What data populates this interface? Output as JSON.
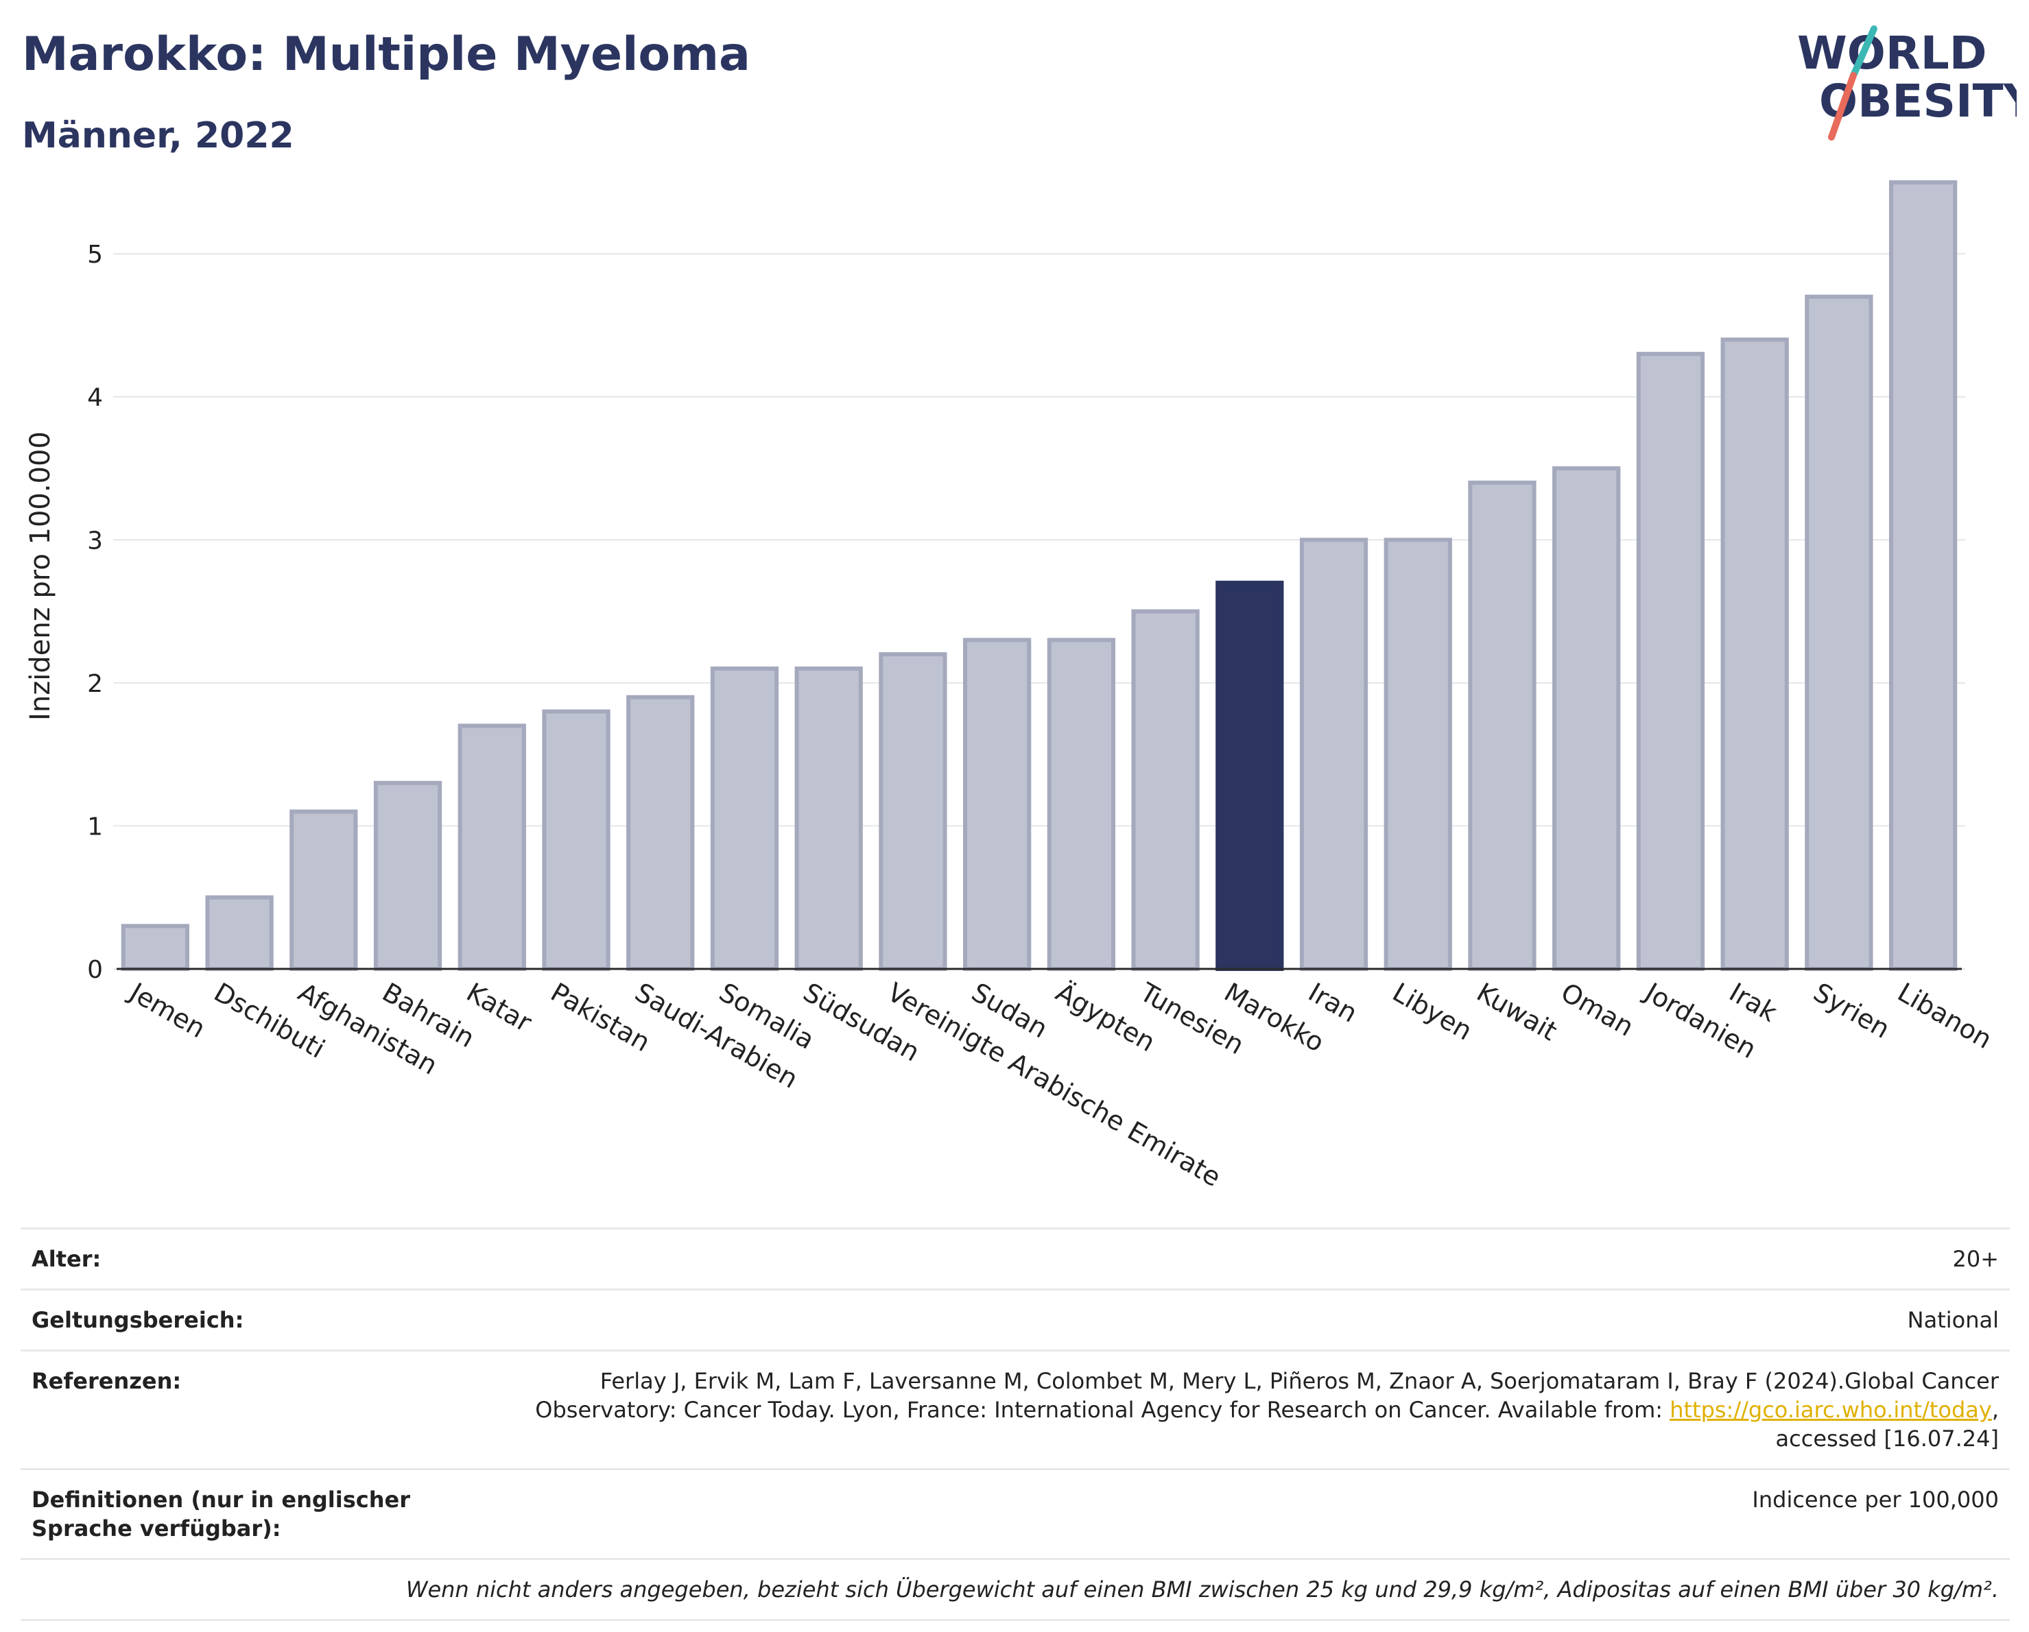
{
  "header": {
    "title": "Marokko: Multiple Myeloma",
    "subtitle": "Männer, 2022",
    "logo_line1": "WORLD",
    "logo_line2": "OBESITY"
  },
  "colors": {
    "bar_default": "#bfc2d0",
    "bar_default_stroke": "#a5a9bd",
    "bar_highlight": "#2b3560",
    "title": "#2b3560",
    "link": "#e0b000"
  },
  "chart_data": {
    "type": "bar",
    "categories": [
      "Jemen",
      "Dschibuti",
      "Afghanistan",
      "Bahrain",
      "Katar",
      "Pakistan",
      "Saudi-Arabien",
      "Somalia",
      "Südsudan",
      "Vereinigte Arabische Emirate",
      "Sudan",
      "Ägypten",
      "Tunesien",
      "Marokko",
      "Iran",
      "Libyen",
      "Kuwait",
      "Oman",
      "Jordanien",
      "Irak",
      "Syrien",
      "Libanon"
    ],
    "values": [
      0.3,
      0.5,
      1.1,
      1.3,
      1.7,
      1.8,
      1.9,
      2.1,
      2.1,
      2.2,
      2.3,
      2.3,
      2.5,
      2.7,
      3.0,
      3.0,
      3.4,
      3.5,
      4.3,
      4.4,
      4.7,
      5.5
    ],
    "highlight": "Marokko",
    "ylabel": "Inzidenz pro 100.000",
    "xlabel": "",
    "ylim": [
      0,
      5.6
    ],
    "yticks": [
      0,
      1,
      2,
      3,
      4,
      5
    ],
    "grid": true
  },
  "meta": {
    "age_label": "Alter:",
    "age_value": "20+",
    "scope_label": "Geltungsbereich:",
    "scope_value": "National",
    "ref_label": "Referenzen:",
    "ref_text_1": "Ferlay J, Ervik M, Lam F, Laversanne M, Colombet M, Mery L, Piñeros M, Znaor A, Soerjomataram I, Bray F (2024).Global Cancer Observatory: Cancer Today. Lyon, France: International Agency for Research on Cancer. Available from: ",
    "ref_link": "https://gco.iarc.who.int/today",
    "ref_text_2": ", accessed [16.07.24]",
    "def_label": "Definitionen (nur in englischer Sprache verfügbar):",
    "def_value": "Indicence per 100,000",
    "note": "Wenn nicht anders angegeben, bezieht sich Übergewicht auf einen BMI zwischen 25 kg und 29,9 kg/m², Adipositas auf einen BMI über 30 kg/m²."
  }
}
